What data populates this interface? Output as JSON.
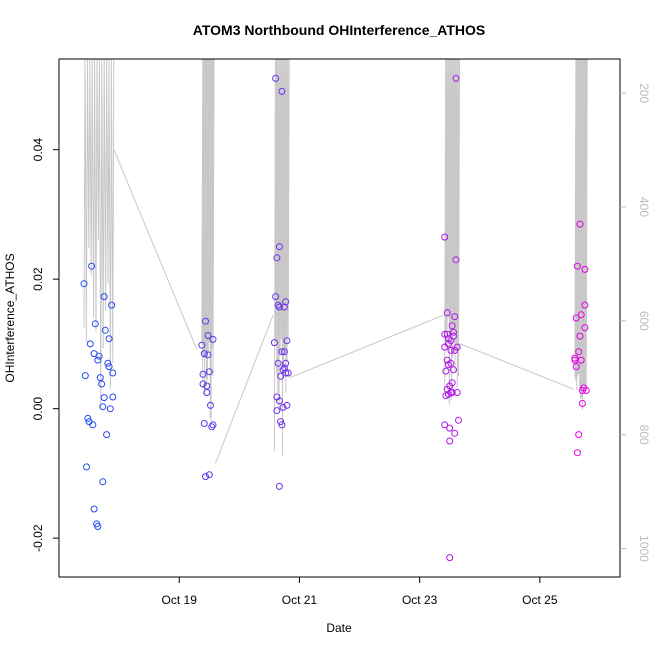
{
  "chart_data": {
    "type": "scatter",
    "title": "ATOM3 Northbound OHInterference_ATHOS",
    "xlabel": "Date",
    "ylabel": "OHInterference_ATHOS",
    "x_unit": "date",
    "xlim": [
      "2016-10-17 00:00",
      "2016-10-26 08:00"
    ],
    "ylim": [
      -0.026,
      0.054
    ],
    "x_ticks": [
      {
        "value": "2016-10-19",
        "label": "Oct 19"
      },
      {
        "value": "2016-10-21",
        "label": "Oct 21"
      },
      {
        "value": "2016-10-23",
        "label": "Oct 23"
      },
      {
        "value": "2016-10-25",
        "label": "Oct 25"
      }
    ],
    "y_ticks": [
      {
        "value": -0.02,
        "label": "-0.02"
      },
      {
        "value": 0.0,
        "label": "0.00"
      },
      {
        "value": 0.02,
        "label": "0.02"
      },
      {
        "value": 0.04,
        "label": "0.04"
      }
    ],
    "right_axis": {
      "color": "#bdbdbd",
      "reversed": true,
      "ylim": [
        140,
        1050
      ],
      "ticks": [
        {
          "value": 200,
          "label": "200"
        },
        {
          "value": 400,
          "label": "400"
        },
        {
          "value": 600,
          "label": "600"
        },
        {
          "value": 800,
          "label": "800"
        },
        {
          "value": 1000,
          "label": "1000"
        }
      ]
    },
    "grid": false,
    "legend": "none",
    "point_color_scale": {
      "start": "#1f4ff0",
      "end": "#e600e6"
    },
    "points": [
      {
        "x": "2016-10-17 10:00",
        "y": 0.0193
      },
      {
        "x": "2016-10-17 10:30",
        "y": 0.0051
      },
      {
        "x": "2016-10-17 11:00",
        "y": -0.009
      },
      {
        "x": "2016-10-17 11:30",
        "y": -0.0015
      },
      {
        "x": "2016-10-17 12:00",
        "y": -0.002
      },
      {
        "x": "2016-10-17 12:30",
        "y": 0.01
      },
      {
        "x": "2016-10-17 13:00",
        "y": 0.022
      },
      {
        "x": "2016-10-17 13:30",
        "y": -0.0025
      },
      {
        "x": "2016-10-17 14:00",
        "y": 0.0085
      },
      {
        "x": "2016-10-17 14:00",
        "y": -0.0155
      },
      {
        "x": "2016-10-17 14:30",
        "y": 0.0131
      },
      {
        "x": "2016-10-17 15:00",
        "y": -0.0178
      },
      {
        "x": "2016-10-17 15:30",
        "y": -0.0182
      },
      {
        "x": "2016-10-17 15:30",
        "y": 0.0075
      },
      {
        "x": "2016-10-17 16:00",
        "y": 0.0081
      },
      {
        "x": "2016-10-17 16:30",
        "y": 0.0048
      },
      {
        "x": "2016-10-17 17:00",
        "y": 0.0038
      },
      {
        "x": "2016-10-17 17:30",
        "y": 0.0003
      },
      {
        "x": "2016-10-17 17:30",
        "y": -0.0113
      },
      {
        "x": "2016-10-17 18:00",
        "y": 0.0017
      },
      {
        "x": "2016-10-17 18:00",
        "y": 0.0173
      },
      {
        "x": "2016-10-17 18:30",
        "y": 0.0121
      },
      {
        "x": "2016-10-17 19:00",
        "y": -0.004
      },
      {
        "x": "2016-10-17 19:30",
        "y": 0.007
      },
      {
        "x": "2016-10-17 20:00",
        "y": 0.0108
      },
      {
        "x": "2016-10-17 20:00",
        "y": 0.0065
      },
      {
        "x": "2016-10-17 20:30",
        "y": 0.0
      },
      {
        "x": "2016-10-17 21:00",
        "y": 0.016
      },
      {
        "x": "2016-10-17 21:30",
        "y": 0.0018
      },
      {
        "x": "2016-10-17 21:30",
        "y": 0.0055
      },
      {
        "x": "2016-10-19 09:00",
        "y": 0.0098
      },
      {
        "x": "2016-10-19 09:30",
        "y": 0.0053
      },
      {
        "x": "2016-10-19 09:30",
        "y": 0.0038
      },
      {
        "x": "2016-10-19 10:00",
        "y": 0.0085
      },
      {
        "x": "2016-10-19 10:00",
        "y": -0.0023
      },
      {
        "x": "2016-10-19 10:30",
        "y": 0.0135
      },
      {
        "x": "2016-10-19 10:30",
        "y": -0.0105
      },
      {
        "x": "2016-10-19 11:00",
        "y": 0.0035
      },
      {
        "x": "2016-10-19 11:00",
        "y": 0.0025
      },
      {
        "x": "2016-10-19 11:30",
        "y": 0.0083
      },
      {
        "x": "2016-10-19 11:30",
        "y": 0.0113
      },
      {
        "x": "2016-10-19 12:00",
        "y": 0.0057
      },
      {
        "x": "2016-10-19 12:00",
        "y": -0.0102
      },
      {
        "x": "2016-10-19 12:30",
        "y": 0.0005
      },
      {
        "x": "2016-10-19 13:00",
        "y": -0.0028
      },
      {
        "x": "2016-10-19 13:30",
        "y": 0.0107
      },
      {
        "x": "2016-10-19 13:30",
        "y": -0.0025
      },
      {
        "x": "2016-10-20 14:00",
        "y": 0.0102
      },
      {
        "x": "2016-10-20 14:30",
        "y": 0.0173
      },
      {
        "x": "2016-10-20 14:30",
        "y": 0.051
      },
      {
        "x": "2016-10-20 15:00",
        "y": 0.0233
      },
      {
        "x": "2016-10-20 15:00",
        "y": -0.0003
      },
      {
        "x": "2016-10-20 15:00",
        "y": 0.0018
      },
      {
        "x": "2016-10-20 15:30",
        "y": 0.016
      },
      {
        "x": "2016-10-20 15:30",
        "y": 0.007
      },
      {
        "x": "2016-10-20 16:00",
        "y": 0.025
      },
      {
        "x": "2016-10-20 16:00",
        "y": 0.0157
      },
      {
        "x": "2016-10-20 16:00",
        "y": -0.012
      },
      {
        "x": "2016-10-20 16:00",
        "y": 0.0012
      },
      {
        "x": "2016-10-20 16:30",
        "y": -0.002
      },
      {
        "x": "2016-10-20 16:30",
        "y": 0.005
      },
      {
        "x": "2016-10-20 17:00",
        "y": 0.049
      },
      {
        "x": "2016-10-20 17:00",
        "y": 0.0088
      },
      {
        "x": "2016-10-20 17:00",
        "y": -0.0025
      },
      {
        "x": "2016-10-20 17:30",
        "y": 0.006
      },
      {
        "x": "2016-10-20 17:30",
        "y": 0.0002
      },
      {
        "x": "2016-10-20 18:00",
        "y": 0.0088
      },
      {
        "x": "2016-10-20 18:00",
        "y": 0.0157
      },
      {
        "x": "2016-10-20 18:00",
        "y": 0.0063
      },
      {
        "x": "2016-10-20 18:30",
        "y": 0.0165
      },
      {
        "x": "2016-10-20 18:30",
        "y": 0.007
      },
      {
        "x": "2016-10-20 18:30",
        "y": 0.0055
      },
      {
        "x": "2016-10-20 19:00",
        "y": 0.0105
      },
      {
        "x": "2016-10-20 19:00",
        "y": 0.0005
      },
      {
        "x": "2016-10-20 19:30",
        "y": 0.0055
      },
      {
        "x": "2016-10-23 10:00",
        "y": 0.0265
      },
      {
        "x": "2016-10-23 10:00",
        "y": 0.0115
      },
      {
        "x": "2016-10-23 10:00",
        "y": 0.0095
      },
      {
        "x": "2016-10-23 10:00",
        "y": -0.0025
      },
      {
        "x": "2016-10-23 10:30",
        "y": 0.0058
      },
      {
        "x": "2016-10-23 10:30",
        "y": 0.002
      },
      {
        "x": "2016-10-23 11:00",
        "y": 0.0148
      },
      {
        "x": "2016-10-23 11:00",
        "y": 0.0115
      },
      {
        "x": "2016-10-23 11:00",
        "y": 0.0075
      },
      {
        "x": "2016-10-23 11:00",
        "y": 0.003
      },
      {
        "x": "2016-10-23 11:30",
        "y": 0.0108
      },
      {
        "x": "2016-10-23 11:30",
        "y": 0.01
      },
      {
        "x": "2016-10-23 11:30",
        "y": 0.0068
      },
      {
        "x": "2016-10-23 11:30",
        "y": 0.0022
      },
      {
        "x": "2016-10-23 12:00",
        "y": -0.005
      },
      {
        "x": "2016-10-23 12:00",
        "y": -0.023
      },
      {
        "x": "2016-10-23 12:00",
        "y": 0.0035
      },
      {
        "x": "2016-10-23 12:00",
        "y": -0.003
      },
      {
        "x": "2016-10-23 12:30",
        "y": 0.0105
      },
      {
        "x": "2016-10-23 12:30",
        "y": 0.009
      },
      {
        "x": "2016-10-23 12:30",
        "y": 0.007
      },
      {
        "x": "2016-10-23 12:30",
        "y": 0.0025
      },
      {
        "x": "2016-10-23 13:00",
        "y": 0.0128
      },
      {
        "x": "2016-10-23 13:00",
        "y": 0.004
      },
      {
        "x": "2016-10-23 13:00",
        "y": 0.0025
      },
      {
        "x": "2016-10-23 13:30",
        "y": 0.0118
      },
      {
        "x": "2016-10-23 13:30",
        "y": 0.0112
      },
      {
        "x": "2016-10-23 13:30",
        "y": 0.006
      },
      {
        "x": "2016-10-23 14:00",
        "y": 0.0142
      },
      {
        "x": "2016-10-23 14:00",
        "y": 0.009
      },
      {
        "x": "2016-10-23 14:00",
        "y": -0.0038
      },
      {
        "x": "2016-10-23 14:30",
        "y": 0.051
      },
      {
        "x": "2016-10-23 14:30",
        "y": 0.023
      },
      {
        "x": "2016-10-23 15:00",
        "y": 0.0095
      },
      {
        "x": "2016-10-23 15:00",
        "y": 0.0025
      },
      {
        "x": "2016-10-23 15:30",
        "y": -0.0018
      },
      {
        "x": "2016-10-25 14:00",
        "y": 0.0078
      },
      {
        "x": "2016-10-25 14:00",
        "y": 0.0075
      },
      {
        "x": "2016-10-25 14:30",
        "y": 0.0065
      },
      {
        "x": "2016-10-25 14:30",
        "y": 0.014
      },
      {
        "x": "2016-10-25 15:00",
        "y": 0.022
      },
      {
        "x": "2016-10-25 15:00",
        "y": -0.0068
      },
      {
        "x": "2016-10-25 15:30",
        "y": 0.0088
      },
      {
        "x": "2016-10-25 15:30",
        "y": -0.004
      },
      {
        "x": "2016-10-25 16:00",
        "y": 0.0285
      },
      {
        "x": "2016-10-25 16:00",
        "y": 0.0112
      },
      {
        "x": "2016-10-25 16:30",
        "y": 0.0145
      },
      {
        "x": "2016-10-25 16:30",
        "y": 0.0075
      },
      {
        "x": "2016-10-25 17:00",
        "y": 0.0008
      },
      {
        "x": "2016-10-25 17:00",
        "y": 0.0028
      },
      {
        "x": "2016-10-25 17:30",
        "y": 0.0032
      },
      {
        "x": "2016-10-25 18:00",
        "y": 0.0215
      },
      {
        "x": "2016-10-25 18:00",
        "y": 0.016
      },
      {
        "x": "2016-10-25 18:00",
        "y": 0.0125
      },
      {
        "x": "2016-10-25 18:30",
        "y": 0.0028
      }
    ],
    "altitude_line": {
      "color": "#c8c8c8",
      "note": "grey profile on right axis",
      "segments": [
        {
          "x": [
            "2016-10-17 10:00",
            "2016-10-17 21:30"
          ],
          "y_top": 140,
          "y_bottom_range": [
            430,
            800
          ]
        },
        {
          "x": [
            "2016-10-19 09:00",
            "2016-10-19 13:30"
          ],
          "y_top": 140,
          "y_bottom_range": [
            630,
            780
          ]
        },
        {
          "x": [
            "2016-10-20 14:00",
            "2016-10-20 19:30"
          ],
          "y_top": 140,
          "y_bottom_range": [
            590,
            840
          ]
        },
        {
          "x": [
            "2016-10-23 10:00",
            "2016-10-23 15:30"
          ],
          "y_top": 140,
          "y_bottom_range": [
            580,
            760
          ]
        },
        {
          "x": [
            "2016-10-25 14:00",
            "2016-10-25 18:30"
          ],
          "y_top": 140,
          "y_bottom_range": [
            690,
            760
          ]
        }
      ],
      "connectors": [
        {
          "x": "2016-10-17 22:00",
          "y": 300
        },
        {
          "x": "2016-10-19 07:00",
          "y": 650
        },
        {
          "x": "2016-10-19 14:30",
          "y": 850
        },
        {
          "x": "2016-10-20 13:30",
          "y": 590
        },
        {
          "x": "2016-10-20 20:00",
          "y": 700
        },
        {
          "x": "2016-10-23 09:30",
          "y": 590
        },
        {
          "x": "2016-10-23 16:00",
          "y": 640
        },
        {
          "x": "2016-10-25 13:30",
          "y": 720
        }
      ]
    }
  }
}
